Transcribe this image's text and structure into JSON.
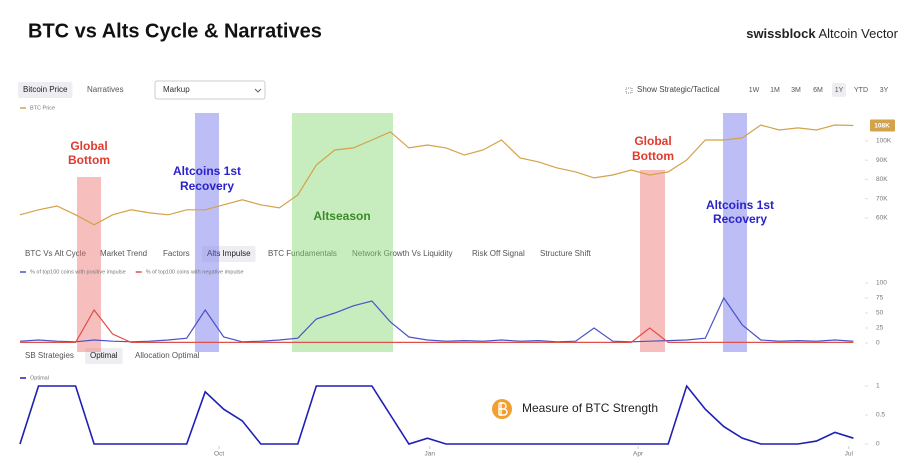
{
  "header": {
    "title": "BTC vs Alts Cycle & Narratives",
    "brand": "swissblock",
    "brand_sub": "Altcoin Vector"
  },
  "toolbar": {
    "tabs": [
      "Bitcoin Price",
      "Narratives"
    ],
    "active_tab": 0,
    "select": "Markup",
    "toggle": "Show Strategic/Tactical",
    "ranges": [
      "1W",
      "1M",
      "3M",
      "6M",
      "1Y",
      "YTD",
      "3Y"
    ],
    "active_range": 4
  },
  "panel_tabs": {
    "tabs": [
      "BTC Vs Alt Cycle",
      "Market Trend",
      "Factors",
      "Alts Impulse",
      "BTC Fundamentals",
      "Network Growth Vs Liquidity",
      "Risk Off Signal",
      "Structure Shift"
    ],
    "active_tab": 3
  },
  "strategy_tabs": {
    "tabs": [
      "SB Strategies",
      "Optimal",
      "Allocation Optimal"
    ],
    "active_tab": 1
  },
  "time_axis": {
    "x": [
      0,
      8,
      16,
      24,
      32,
      40,
      48,
      56,
      64,
      72,
      80,
      88,
      96,
      104,
      112,
      120,
      128,
      136,
      144,
      152,
      160,
      168,
      176,
      184,
      192,
      200,
      208,
      216,
      224,
      232,
      240,
      248,
      256,
      264,
      272,
      280,
      288,
      296,
      304,
      312,
      320,
      328,
      336,
      344,
      352,
      360
    ],
    "xlim": [
      0,
      365
    ],
    "xticks": [
      {
        "value": 86,
        "label": "Oct"
      },
      {
        "value": 177,
        "label": "Jan"
      },
      {
        "value": 267,
        "label": "Apr"
      },
      {
        "value": 358,
        "label": "Jul"
      }
    ]
  },
  "chart_data": [
    {
      "type": "line",
      "ylim": [
        48,
        114
      ],
      "yticks": [
        {
          "value": 60,
          "label": "60K"
        },
        {
          "value": 70,
          "label": "70K"
        },
        {
          "value": 80,
          "label": "80K"
        },
        {
          "value": 90,
          "label": "90K"
        },
        {
          "value": 100,
          "label": "100K"
        }
      ],
      "current_label": "108K",
      "series": [
        {
          "name": "BTC Price",
          "color": "#d4a24a",
          "values": [
            61.6,
            64.2,
            66.2,
            61.6,
            56.4,
            61.6,
            64.2,
            62.6,
            61.6,
            64.2,
            64.2,
            66.8,
            69.4,
            66.8,
            65.2,
            71.9,
            87.5,
            95.3,
            96.4,
            100.5,
            104.7,
            96.4,
            97.9,
            96.4,
            92.7,
            95.3,
            100.5,
            91.2,
            89.1,
            86,
            83.9,
            80.8,
            82.3,
            84.9,
            82.3,
            83.9,
            90.1,
            100.5,
            100.5,
            101.6,
            108.3,
            105.7,
            106.8,
            105.7,
            108.3,
            108
          ]
        }
      ]
    },
    {
      "type": "line",
      "ylim": [
        0,
        100
      ],
      "yticks": [
        0,
        25,
        50,
        75,
        100
      ],
      "series": [
        {
          "name": "% of top100 coins with positive impulse",
          "color": "#4a52c8",
          "values": [
            3,
            5,
            3,
            2,
            5,
            3,
            2,
            3,
            5,
            8,
            55,
            10,
            2,
            3,
            5,
            8,
            40,
            50,
            62,
            70,
            35,
            10,
            5,
            3,
            4,
            3,
            5,
            3,
            4,
            2,
            3,
            25,
            3,
            2,
            3,
            4,
            5,
            8,
            75,
            30,
            5,
            3,
            4,
            3,
            5,
            3
          ]
        },
        {
          "name": "% of top100 coins with negative impulse",
          "color": "#e0504a",
          "values": [
            1,
            1,
            1,
            1,
            55,
            15,
            1,
            1,
            1,
            1,
            1,
            1,
            1,
            1,
            1,
            1,
            1,
            1,
            1,
            1,
            1,
            1,
            1,
            1,
            1,
            1,
            1,
            1,
            1,
            1,
            1,
            1,
            1,
            1,
            25,
            1,
            1,
            1,
            1,
            1,
            1,
            1,
            1,
            1,
            1,
            1
          ]
        }
      ]
    },
    {
      "type": "line",
      "ylim": [
        0,
        1
      ],
      "yticks": [
        0,
        0.5,
        1
      ],
      "series": [
        {
          "name": "Optimal",
          "color": "#1f1fb4",
          "values": [
            0,
            1,
            1,
            1,
            0,
            0,
            0,
            0,
            0,
            0,
            0.9,
            0.6,
            0.4,
            0,
            0,
            0,
            1,
            1,
            1,
            1,
            0.5,
            0,
            0.1,
            0,
            0,
            0,
            0,
            0,
            0,
            0,
            0,
            0,
            0,
            0,
            0,
            0,
            1,
            0.6,
            0.3,
            0.1,
            0,
            0,
            0,
            0.05,
            0.2,
            0.1
          ]
        }
      ]
    }
  ],
  "annotations": [
    {
      "lines": [
        "Global",
        "Bottom"
      ],
      "color": "#e03a2f"
    },
    {
      "lines": [
        "Altcoins 1st",
        "Recovery"
      ],
      "color": "#2a22c8"
    },
    {
      "lines": [
        "Altseason"
      ],
      "color": "#3b8a2a"
    },
    {
      "lines": [
        "Global",
        "Bottom"
      ],
      "color": "#e03a2f"
    },
    {
      "lines": [
        "Altcoins 1st",
        "Recovery"
      ],
      "color": "#2a22c8"
    }
  ],
  "footnote": "Measure of BTC Strength"
}
